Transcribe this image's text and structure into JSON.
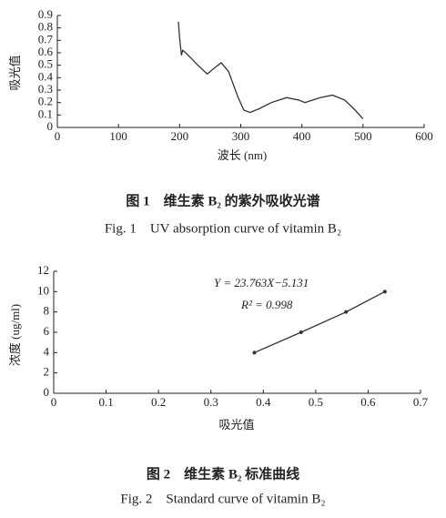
{
  "chart_data": [
    {
      "type": "line",
      "caption_cn": "图 1　维生素 B₂ 的紫外吸收光谱",
      "caption_en": "Fig. 1　UV absorption curve of vitamin B₂",
      "x_label": "波长 (nm)",
      "y_label": "吸光值",
      "x": [
        198,
        200,
        203,
        205,
        210,
        220,
        230,
        245,
        255,
        268,
        280,
        295,
        305,
        315,
        330,
        350,
        375,
        395,
        405,
        430,
        450,
        470,
        485,
        500
      ],
      "values": [
        0.85,
        0.72,
        0.58,
        0.62,
        0.6,
        0.55,
        0.5,
        0.43,
        0.47,
        0.52,
        0.45,
        0.25,
        0.14,
        0.12,
        0.15,
        0.2,
        0.24,
        0.22,
        0.2,
        0.24,
        0.26,
        0.22,
        0.15,
        0.07
      ],
      "color": "#333333",
      "xlim": [
        0,
        600
      ],
      "xticks": [
        0,
        100,
        200,
        300,
        400,
        500,
        600
      ],
      "ylim": [
        0,
        0.9
      ],
      "yticks": [
        0,
        0.1,
        0.2,
        0.3,
        0.4,
        0.5,
        0.6,
        0.7,
        0.8,
        0.9
      ]
    },
    {
      "type": "scatter",
      "caption_cn": "图 2　维生素 B₂ 标准曲线",
      "caption_en": "Fig. 2　Standard curve of vitamin B₂",
      "x_label": "吸光值",
      "y_label": "浓度 (ug/ml)",
      "annotations": [
        "Y = 23.763X−5.131",
        "R² = 0.998"
      ],
      "x": [
        0.383,
        0.472,
        0.558,
        0.632
      ],
      "values": [
        4,
        6,
        8,
        10
      ],
      "color": "#333333",
      "xlim": [
        0,
        0.7
      ],
      "xticks": [
        0,
        0.1,
        0.2,
        0.3,
        0.4,
        0.5,
        0.6,
        0.7
      ],
      "ylim": [
        0,
        12
      ],
      "yticks": [
        0,
        2,
        4,
        6,
        8,
        10,
        12
      ]
    }
  ]
}
